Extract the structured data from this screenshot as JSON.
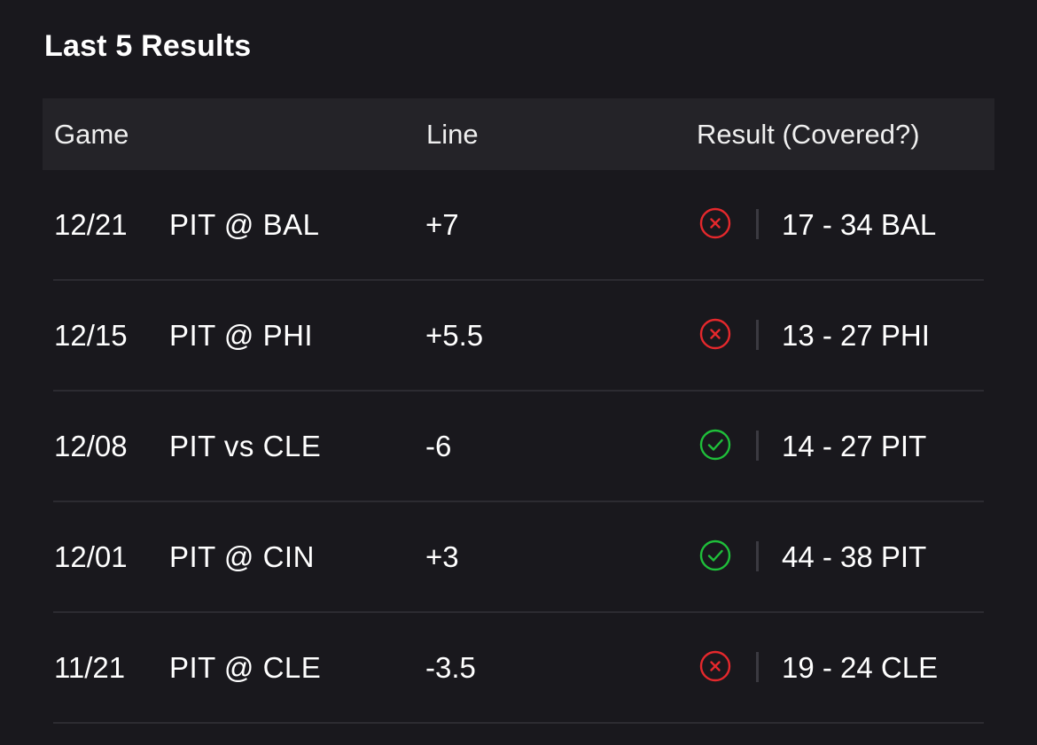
{
  "title": "Last 5 Results",
  "headers": {
    "game": "Game",
    "line": "Line",
    "result": "Result (Covered?)"
  },
  "colors": {
    "background": "#19181d",
    "header_bg": "#242328",
    "covered": "#1fbf3a",
    "not_covered": "#e5282c"
  },
  "rows": [
    {
      "date": "12/21",
      "matchup": "PIT @ BAL",
      "line": "+7",
      "covered": false,
      "icon": "x-circle-icon",
      "score": "17 - 34 BAL"
    },
    {
      "date": "12/15",
      "matchup": "PIT @ PHI",
      "line": "+5.5",
      "covered": false,
      "icon": "x-circle-icon",
      "score": "13 - 27 PHI"
    },
    {
      "date": "12/08",
      "matchup": "PIT vs CLE",
      "line": "-6",
      "covered": true,
      "icon": "check-circle-icon",
      "score": "14 - 27 PIT"
    },
    {
      "date": "12/01",
      "matchup": "PIT @ CIN",
      "line": "+3",
      "covered": true,
      "icon": "check-circle-icon",
      "score": "44 - 38 PIT"
    },
    {
      "date": "11/21",
      "matchup": "PIT @ CLE",
      "line": "-3.5",
      "covered": false,
      "icon": "x-circle-icon",
      "score": "19 - 24 CLE"
    }
  ]
}
